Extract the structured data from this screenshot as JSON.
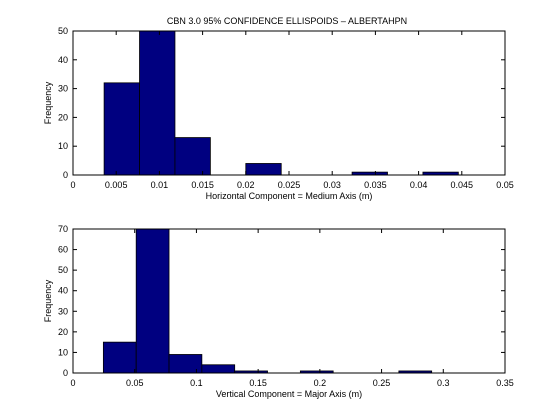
{
  "figure_title": "CBN 3.0 95% CONFIDENCE ELLISPOIDS – ALBERTAHPN",
  "colors": {
    "bar_fill": "#000080",
    "bar_stroke": "#000000",
    "axes": "#000000",
    "background": "#ffffff"
  },
  "chart_data": [
    {
      "type": "bar",
      "title": "CBN 3.0 95% CONFIDENCE ELLISPOIDS – ALBERTAHPN",
      "xlabel": "Horizontal Component = Medium Axis (m)",
      "ylabel": "Frequency",
      "xlim": [
        0,
        0.05
      ],
      "ylim": [
        0,
        50
      ],
      "xticks": [
        "0",
        "0.005",
        "0.01",
        "0.015",
        "0.02",
        "0.025",
        "0.03",
        "0.035",
        "0.04",
        "0.045",
        "0.05"
      ],
      "yticks": [
        "0",
        "10",
        "20",
        "30",
        "40",
        "50"
      ],
      "bins": [
        {
          "x0": 0.0036,
          "x1": 0.0077,
          "value": 32
        },
        {
          "x0": 0.0077,
          "x1": 0.0118,
          "value": 50
        },
        {
          "x0": 0.0118,
          "x1": 0.0159,
          "value": 13
        },
        {
          "x0": 0.0159,
          "x1": 0.02,
          "value": 0
        },
        {
          "x0": 0.02,
          "x1": 0.0241,
          "value": 4
        },
        {
          "x0": 0.0241,
          "x1": 0.0282,
          "value": 0
        },
        {
          "x0": 0.0282,
          "x1": 0.0323,
          "value": 0
        },
        {
          "x0": 0.0323,
          "x1": 0.0364,
          "value": 1
        },
        {
          "x0": 0.0364,
          "x1": 0.0405,
          "value": 0
        },
        {
          "x0": 0.0405,
          "x1": 0.0446,
          "value": 1
        }
      ]
    },
    {
      "type": "bar",
      "title": "",
      "xlabel": "Vertical Component = Major Axis (m)",
      "ylabel": "Frequency",
      "xlim": [
        0,
        0.35
      ],
      "ylim": [
        0,
        70
      ],
      "xticks": [
        "0",
        "0.05",
        "0.1",
        "0.15",
        "0.2",
        "0.25",
        "0.3",
        "0.35"
      ],
      "yticks": [
        "0",
        "10",
        "20",
        "30",
        "40",
        "50",
        "60",
        "70"
      ],
      "bins": [
        {
          "x0": 0.0246,
          "x1": 0.0512,
          "value": 15
        },
        {
          "x0": 0.0512,
          "x1": 0.0778,
          "value": 70
        },
        {
          "x0": 0.0778,
          "x1": 0.1044,
          "value": 9
        },
        {
          "x0": 0.1044,
          "x1": 0.131,
          "value": 4
        },
        {
          "x0": 0.131,
          "x1": 0.1576,
          "value": 1
        },
        {
          "x0": 0.1576,
          "x1": 0.1842,
          "value": 0
        },
        {
          "x0": 0.1842,
          "x1": 0.2108,
          "value": 1
        },
        {
          "x0": 0.2108,
          "x1": 0.2374,
          "value": 0
        },
        {
          "x0": 0.2374,
          "x1": 0.264,
          "value": 0
        },
        {
          "x0": 0.264,
          "x1": 0.2906,
          "value": 1
        }
      ]
    }
  ]
}
